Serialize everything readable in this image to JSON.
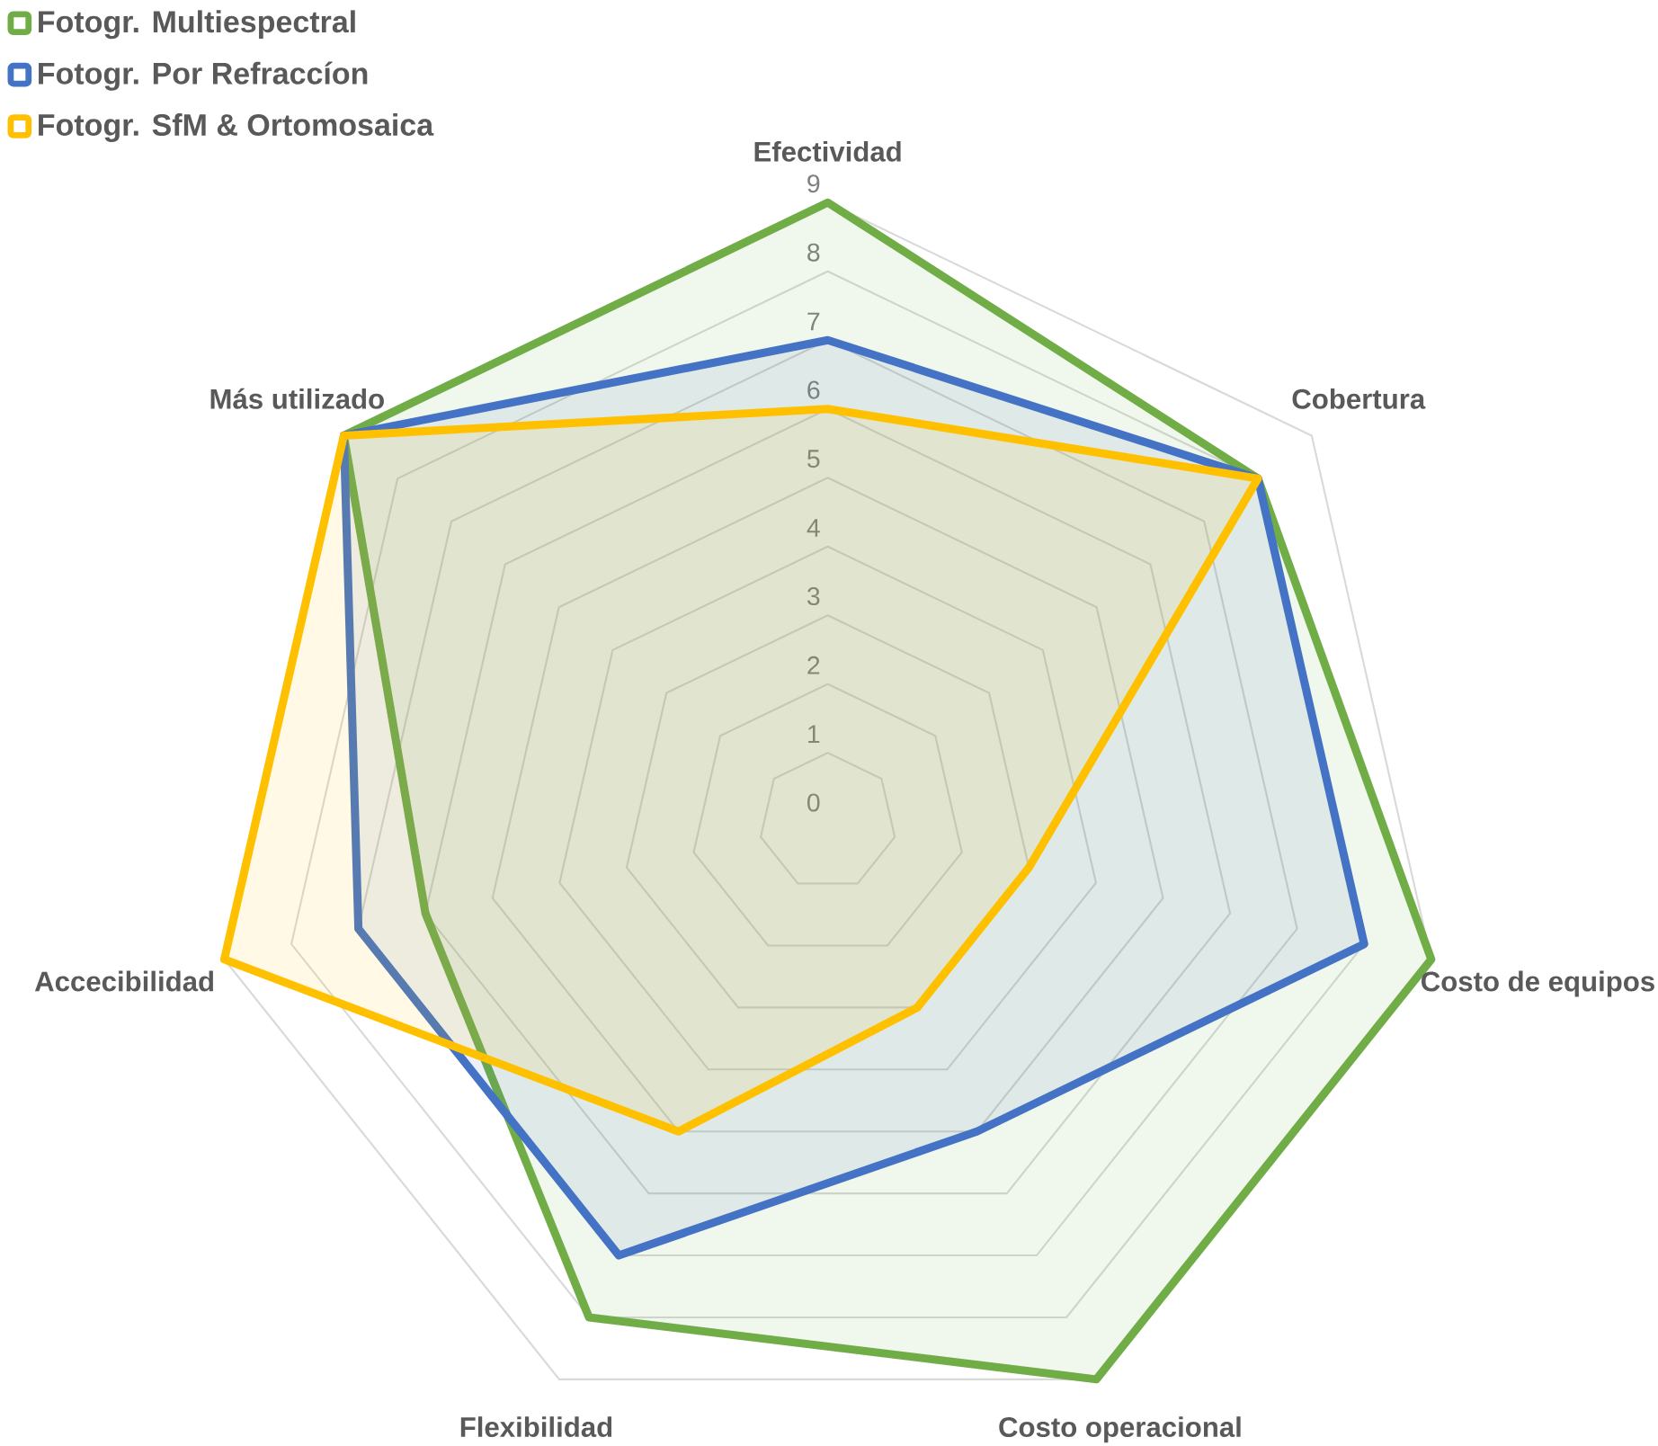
{
  "chart_data": {
    "type": "radar",
    "categories": [
      "Efectividad",
      "Cobertura",
      "Costo de equipos",
      "Costo operacional",
      "Flexibilidad",
      "Accecibilidad",
      "Más utilizado"
    ],
    "series": [
      {
        "name": "Fotogr. Multiespectral",
        "color": "#70ad47",
        "values": [
          9,
          8,
          9,
          9,
          8,
          6,
          9
        ]
      },
      {
        "name": "Fotogr. Por Refraccíon",
        "color": "#4472c4",
        "values": [
          7,
          8,
          8,
          5,
          7,
          7,
          9
        ]
      },
      {
        "name": "Fotogr. SfM & Ortomosaica",
        "color": "#ffc000",
        "values": [
          6,
          8,
          3,
          3,
          5,
          9,
          9
        ]
      }
    ],
    "ylim": [
      0,
      9
    ],
    "yticks": [
      0,
      1,
      2,
      3,
      4,
      5,
      6,
      7,
      8,
      9
    ],
    "grid": true,
    "legend": "top left"
  }
}
